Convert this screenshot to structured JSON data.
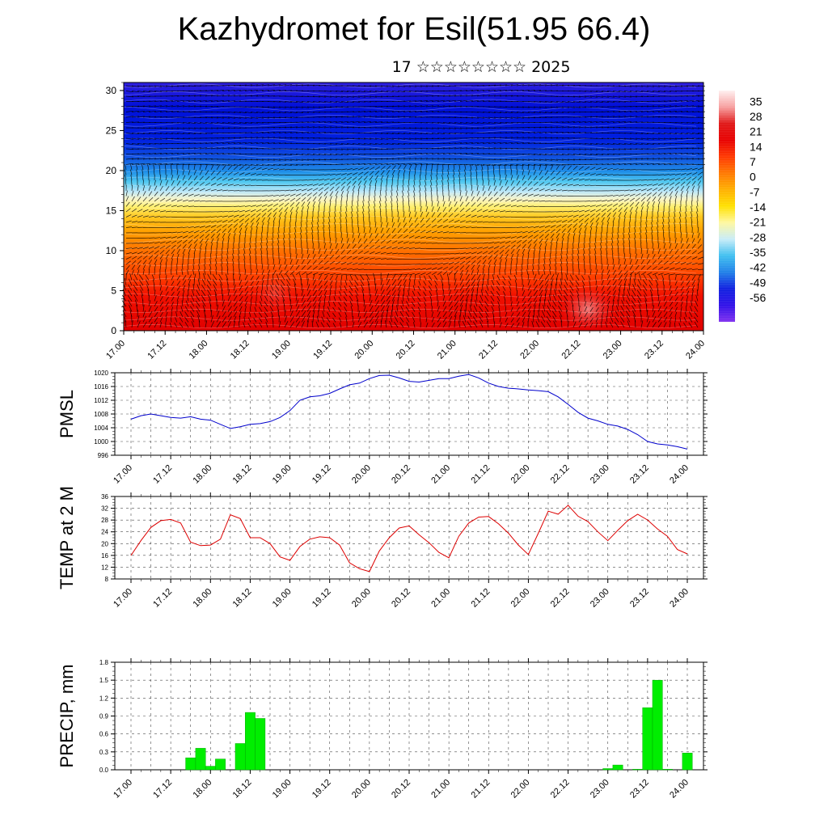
{
  "title": "Kazhydromet for Esil(51.95 66.4)",
  "subtitle": "17 ☆☆☆☆☆☆☆☆ 2025",
  "colors": {
    "pmsl_line": "#0000cc",
    "temp_line": "#dd0000",
    "precip_bar": "#00ee00",
    "grid": "#000000"
  },
  "chart_data": [
    {
      "type": "heatmap",
      "name": "cross_section",
      "y_ticks": [
        "0",
        "5",
        "10",
        "15",
        "20",
        "25",
        "30"
      ],
      "ylim": [
        0,
        31
      ],
      "x_ticks": [
        "17.00",
        "17.12",
        "18.00",
        "18.12",
        "19.00",
        "19.12",
        "20.00",
        "20.12",
        "21.00",
        "21.12",
        "22.00",
        "22.12",
        "23.00",
        "23.12",
        "24.00"
      ],
      "colorbar_labels": [
        "35",
        "28",
        "21",
        "14",
        "7",
        "0",
        "-7",
        "-14",
        "-21",
        "-28",
        "-35",
        "-42",
        "-49",
        "-56"
      ],
      "colorbar_colors": [
        "#fff0f0",
        "#f7a0a0",
        "#e01818",
        "#e80000",
        "#ff3800",
        "#ff7800",
        "#ffb000",
        "#ffe000",
        "#fff8a0",
        "#c8ecf8",
        "#40c0f0",
        "#2080e8",
        "#1020e0",
        "#3010e8",
        "#8030f0"
      ],
      "vectors": true
    },
    {
      "type": "line",
      "name": "pmsl",
      "ylabel": "PMSL",
      "ylim": [
        996,
        1020
      ],
      "y_ticks": [
        "1020",
        "1016",
        "1012",
        "1008",
        "1004",
        "1000",
        "996"
      ],
      "x_ticks": [
        "17.00",
        "17.12",
        "18.00",
        "18.12",
        "19.00",
        "19.12",
        "20.00",
        "20.12",
        "21.00",
        "21.12",
        "22.00",
        "22.12",
        "23.00",
        "23.12",
        "24.00"
      ],
      "x": [
        0,
        1,
        2,
        3,
        4,
        5,
        6,
        7,
        8,
        9,
        10,
        11,
        12,
        13,
        14,
        15,
        16,
        17,
        18,
        19,
        20,
        21,
        22,
        23,
        24,
        25,
        26,
        27,
        28,
        29,
        30,
        31,
        32,
        33,
        34,
        35,
        36,
        37,
        38,
        39,
        40,
        41,
        42,
        43,
        44,
        45,
        46,
        47,
        48,
        49,
        50,
        51,
        52,
        53,
        54,
        55,
        56
      ],
      "values": [
        1006.5,
        1007.5,
        1008,
        1007.5,
        1007,
        1006.8,
        1007.2,
        1006.5,
        1006.2,
        1005,
        1003.8,
        1004.3,
        1005,
        1005.2,
        1005.8,
        1007,
        1009,
        1012,
        1013,
        1013.3,
        1014,
        1015.3,
        1016.5,
        1017,
        1018.3,
        1019.2,
        1019.3,
        1018.5,
        1017.5,
        1017.3,
        1017.8,
        1018.3,
        1018.3,
        1019,
        1019.5,
        1018.5,
        1017,
        1016,
        1015.5,
        1015.3,
        1015,
        1014.8,
        1014.5,
        1013,
        1010.8,
        1008.5,
        1006.8,
        1006,
        1005,
        1004.5,
        1003.5,
        1002,
        1000,
        999.3,
        999,
        998.5,
        997.8
      ]
    },
    {
      "type": "line",
      "name": "temp2m",
      "ylabel": "TEMP at 2 M",
      "ylim": [
        8,
        36
      ],
      "y_ticks": [
        "36",
        "32",
        "28",
        "24",
        "20",
        "16",
        "12",
        "8"
      ],
      "x_ticks": [
        "17.00",
        "17.12",
        "18.00",
        "18.12",
        "19.00",
        "19.12",
        "20.00",
        "20.12",
        "21.00",
        "21.12",
        "22.00",
        "22.12",
        "23.00",
        "23.12",
        "24.00"
      ],
      "x": [
        0,
        1,
        2,
        3,
        4,
        5,
        6,
        7,
        8,
        9,
        10,
        11,
        12,
        13,
        14,
        15,
        16,
        17,
        18,
        19,
        20,
        21,
        22,
        23,
        24,
        25,
        26,
        27,
        28,
        29,
        30,
        31,
        32,
        33,
        34,
        35,
        36,
        37,
        38,
        39,
        40,
        41,
        42,
        43,
        44,
        45,
        46,
        47,
        48,
        49,
        50,
        51,
        52,
        53,
        54,
        55,
        56
      ],
      "values": [
        16,
        21,
        25.5,
        27.8,
        28.2,
        27,
        20.5,
        19.3,
        19.5,
        21.5,
        29.8,
        28.5,
        22,
        22,
        20,
        15.5,
        14.3,
        19,
        21.5,
        22.3,
        22,
        19.5,
        13.5,
        11.5,
        10.5,
        17.5,
        22,
        25.3,
        26,
        23,
        20.3,
        17,
        15.2,
        22.5,
        27,
        29,
        29.2,
        26.7,
        23.5,
        19.5,
        16.3,
        23.5,
        31,
        30,
        33,
        29.3,
        27.5,
        24,
        21,
        24.5,
        27.8,
        30,
        28,
        25,
        22.5,
        18,
        16.5
      ]
    },
    {
      "type": "bar",
      "name": "precip",
      "ylabel": "PRECIP, mm",
      "ylim": [
        0,
        1.8
      ],
      "y_ticks": [
        "1.8",
        "1.5",
        "1.2",
        "0.9",
        "0.6",
        "0.3",
        "0.0"
      ],
      "x_ticks": [
        "17.00",
        "17.12",
        "18.00",
        "18.12",
        "19.00",
        "19.12",
        "20.00",
        "20.12",
        "21.00",
        "21.12",
        "22.00",
        "22.12",
        "23.00",
        "23.12",
        "24.00"
      ],
      "x": [
        6,
        7,
        8,
        9,
        11,
        12,
        13,
        48,
        49,
        51,
        52,
        53,
        54,
        56
      ],
      "values": [
        0.2,
        0.36,
        0.06,
        0.18,
        0.44,
        0.96,
        0.86,
        0.02,
        0.08,
        0.01,
        1.04,
        1.5,
        0.01,
        0.28
      ]
    }
  ]
}
